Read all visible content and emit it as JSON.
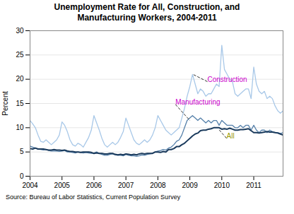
{
  "chart_data": {
    "type": "line",
    "title": "Unemployment Rate for All, Construction, and\nManufacturing Workers, 2004-2011",
    "ylabel": "Percent",
    "source": "Source: Bureau of Labor Statistics, Current Population Survey",
    "x": [
      2004,
      2004.083333,
      2004.166667,
      2004.25,
      2004.333333,
      2004.416667,
      2004.5,
      2004.583333,
      2004.666667,
      2004.75,
      2004.833333,
      2004.916667,
      2005,
      2005.083333,
      2005.166667,
      2005.25,
      2005.333333,
      2005.416667,
      2005.5,
      2005.583333,
      2005.666667,
      2005.75,
      2005.833333,
      2005.916667,
      2006,
      2006.083333,
      2006.166667,
      2006.25,
      2006.333333,
      2006.416667,
      2006.5,
      2006.583333,
      2006.666667,
      2006.75,
      2006.833333,
      2006.916667,
      2007,
      2007.083333,
      2007.166667,
      2007.25,
      2007.333333,
      2007.416667,
      2007.5,
      2007.583333,
      2007.666667,
      2007.75,
      2007.833333,
      2007.916667,
      2008,
      2008.083333,
      2008.166667,
      2008.25,
      2008.333333,
      2008.416667,
      2008.5,
      2008.583333,
      2008.666667,
      2008.75,
      2008.833333,
      2008.916667,
      2009,
      2009.083333,
      2009.166667,
      2009.25,
      2009.333333,
      2009.416667,
      2009.5,
      2009.583333,
      2009.666667,
      2009.75,
      2009.833333,
      2009.916667,
      2010,
      2010.083333,
      2010.166667,
      2010.25,
      2010.333333,
      2010.416667,
      2010.5,
      2010.583333,
      2010.666667,
      2010.75,
      2010.833333,
      2010.916667,
      2011,
      2011.083333,
      2011.166667,
      2011.25,
      2011.333333,
      2011.416667,
      2011.5,
      2011.583333,
      2011.666667,
      2011.75,
      2011.833333,
      2011.916667
    ],
    "series": [
      {
        "name": "Construction",
        "color": "#a8c8e8",
        "values": [
          11.5,
          10.8,
          10.0,
          8.5,
          7.2,
          7.0,
          7.5,
          7.0,
          6.5,
          7.0,
          7.5,
          8.5,
          11.2,
          10.5,
          9.2,
          7.5,
          6.5,
          6.2,
          6.8,
          6.5,
          6.0,
          7.0,
          8.0,
          9.5,
          12.5,
          11.0,
          9.5,
          7.8,
          6.5,
          6.0,
          6.5,
          7.0,
          6.5,
          7.0,
          8.0,
          9.2,
          12.0,
          10.5,
          9.0,
          7.5,
          6.8,
          6.5,
          7.0,
          7.5,
          7.0,
          7.5,
          8.5,
          10.0,
          12.5,
          11.5,
          10.5,
          9.5,
          9.0,
          8.5,
          9.0,
          9.5,
          10.0,
          12.0,
          14.0,
          16.5,
          18.5,
          21.0,
          19.0,
          17.0,
          18.0,
          17.5,
          16.5,
          17.0,
          17.0,
          18.0,
          19.0,
          18.5,
          27.0,
          22.0,
          21.0,
          20.0,
          19.5,
          17.0,
          16.5,
          17.0,
          17.5,
          18.0,
          18.0,
          16.0,
          22.5,
          19.0,
          17.5,
          17.0,
          17.5,
          16.0,
          16.5,
          16.0,
          14.5,
          13.5,
          13.0,
          13.5
        ]
      },
      {
        "name": "Manufacturing",
        "color": "#5580aa",
        "values": [
          6.2,
          6.0,
          5.8,
          5.6,
          5.5,
          5.4,
          5.5,
          5.3,
          5.2,
          5.2,
          5.2,
          5.1,
          5.2,
          5.3,
          5.0,
          5.0,
          4.9,
          4.8,
          5.0,
          4.9,
          4.8,
          4.9,
          4.8,
          4.7,
          4.8,
          5.0,
          4.7,
          4.5,
          4.3,
          4.3,
          4.5,
          4.6,
          4.4,
          4.3,
          4.3,
          4.2,
          4.5,
          4.3,
          4.2,
          4.2,
          4.1,
          4.2,
          4.4,
          4.3,
          4.5,
          4.6,
          4.7,
          5.0,
          5.2,
          5.3,
          5.5,
          5.4,
          5.8,
          6.0,
          6.5,
          7.2,
          7.5,
          8.5,
          10.0,
          11.5,
          12.0,
          12.5,
          12.0,
          11.5,
          12.0,
          11.5,
          11.0,
          11.5,
          11.0,
          11.5,
          11.5,
          10.5,
          11.5,
          11.0,
          10.5,
          10.5,
          10.5,
          10.0,
          10.0,
          10.5,
          10.0,
          10.5,
          10.5,
          9.5,
          10.5,
          9.5,
          9.0,
          9.5,
          9.5,
          9.0,
          9.5,
          9.2,
          9.0,
          9.0,
          8.8,
          9.0
        ]
      },
      {
        "name": "All",
        "color": "#1a3a5c",
        "values": [
          5.7,
          5.6,
          5.8,
          5.6,
          5.6,
          5.6,
          5.5,
          5.4,
          5.4,
          5.5,
          5.4,
          5.4,
          5.3,
          5.4,
          5.2,
          5.1,
          5.1,
          5.0,
          5.0,
          4.9,
          5.0,
          5.0,
          5.0,
          4.9,
          4.7,
          4.8,
          4.7,
          4.7,
          4.6,
          4.6,
          4.7,
          4.7,
          4.5,
          4.4,
          4.5,
          4.4,
          4.6,
          4.5,
          4.4,
          4.5,
          4.4,
          4.6,
          4.7,
          4.6,
          4.7,
          4.7,
          4.7,
          5.0,
          5.0,
          4.9,
          5.1,
          5.0,
          5.5,
          5.5,
          5.7,
          6.1,
          6.1,
          6.5,
          6.8,
          7.3,
          7.8,
          8.3,
          8.7,
          8.9,
          9.4,
          9.5,
          9.5,
          9.7,
          9.8,
          10.0,
          10.0,
          10.0,
          9.7,
          9.8,
          9.7,
          9.9,
          9.7,
          9.5,
          9.5,
          9.6,
          9.6,
          9.7,
          9.8,
          9.4,
          9.0,
          9.0,
          8.9,
          9.0,
          9.1,
          9.2,
          9.1,
          9.1,
          9.0,
          8.9,
          8.7,
          8.5
        ]
      }
    ],
    "annotations": [
      {
        "text": "Construction",
        "x": 2009.1,
        "y": 21.0,
        "text_x": 2009.55,
        "text_y": 19.5,
        "color": "#cc00cc"
      },
      {
        "text": "Manufacturing",
        "x": 2009.0,
        "y": 11.5,
        "text_x": 2008.55,
        "text_y": 14.8,
        "color": "#cc00cc"
      },
      {
        "text": "All",
        "x": 2009.9,
        "y": 9.7,
        "text_x": 2010.15,
        "text_y": 7.8,
        "color": "#999900"
      }
    ],
    "xlim": [
      2004,
      2011.916667
    ],
    "xticks": [
      2004,
      2005,
      2006,
      2007,
      2008,
      2009,
      2010,
      2011
    ],
    "ylim": [
      0,
      30
    ],
    "yticks": [
      0,
      5,
      10,
      15,
      20,
      25,
      30
    ],
    "grid": true
  }
}
